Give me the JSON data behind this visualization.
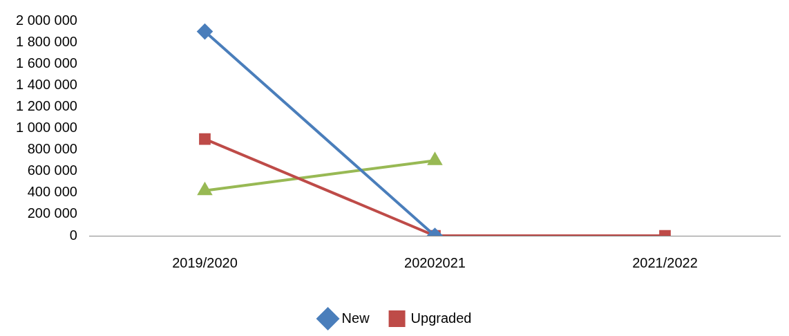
{
  "chart_data": {
    "type": "line",
    "categories": [
      "2019/2020",
      "20202021",
      "2021/2022"
    ],
    "series": [
      {
        "name": "New",
        "color": "#4a7ebb",
        "marker": "diamond",
        "values": [
          1900000,
          0,
          null
        ]
      },
      {
        "name": "Upgraded",
        "color": "#be4b48",
        "marker": "square",
        "values": [
          900000,
          0,
          0
        ]
      },
      {
        "color": "#98b954",
        "marker": "triangle",
        "values": [
          420000,
          700000,
          null
        ]
      }
    ],
    "ylim": [
      0,
      2000000
    ],
    "yticks": [
      {
        "value": 0,
        "label": "0"
      },
      {
        "value": 200000,
        "label": "200 000"
      },
      {
        "value": 400000,
        "label": "400 000"
      },
      {
        "value": 600000,
        "label": "600 000"
      },
      {
        "value": 800000,
        "label": "800 000"
      },
      {
        "value": 1000000,
        "label": "1 000 000"
      },
      {
        "value": 1200000,
        "label": "1 200 000"
      },
      {
        "value": 1400000,
        "label": "1 400 000"
      },
      {
        "value": 1600000,
        "label": "1 600 000"
      },
      {
        "value": 1800000,
        "label": "1 800 000"
      },
      {
        "value": 2000000,
        "label": "2 000 000"
      }
    ],
    "grid": false,
    "legend": "bottom"
  }
}
